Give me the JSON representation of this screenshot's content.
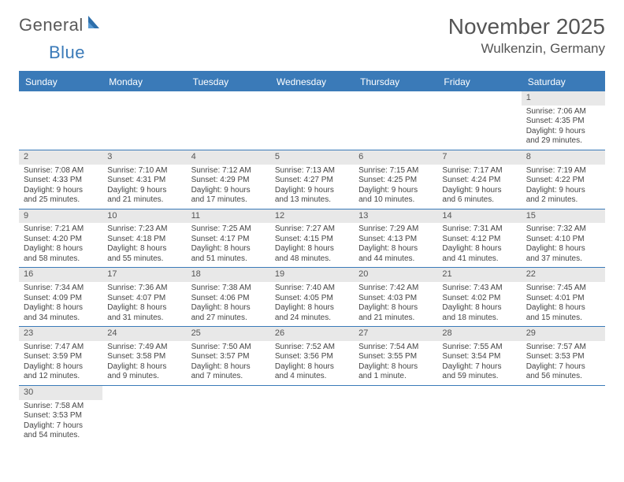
{
  "logo": {
    "text1": "General",
    "text2": "Blue"
  },
  "title": "November 2025",
  "location": "Wulkenzin, Germany",
  "colors": {
    "accent": "#3a7ab8",
    "dayhead_text": "#ffffff",
    "daynum_bg": "#e8e8e8",
    "body_text": "#444444"
  },
  "dayheads": [
    "Sunday",
    "Monday",
    "Tuesday",
    "Wednesday",
    "Thursday",
    "Friday",
    "Saturday"
  ],
  "weeks": [
    [
      null,
      null,
      null,
      null,
      null,
      null,
      {
        "n": "1",
        "sr": "Sunrise: 7:06 AM",
        "ss": "Sunset: 4:35 PM",
        "d1": "Daylight: 9 hours",
        "d2": "and 29 minutes."
      }
    ],
    [
      {
        "n": "2",
        "sr": "Sunrise: 7:08 AM",
        "ss": "Sunset: 4:33 PM",
        "d1": "Daylight: 9 hours",
        "d2": "and 25 minutes."
      },
      {
        "n": "3",
        "sr": "Sunrise: 7:10 AM",
        "ss": "Sunset: 4:31 PM",
        "d1": "Daylight: 9 hours",
        "d2": "and 21 minutes."
      },
      {
        "n": "4",
        "sr": "Sunrise: 7:12 AM",
        "ss": "Sunset: 4:29 PM",
        "d1": "Daylight: 9 hours",
        "d2": "and 17 minutes."
      },
      {
        "n": "5",
        "sr": "Sunrise: 7:13 AM",
        "ss": "Sunset: 4:27 PM",
        "d1": "Daylight: 9 hours",
        "d2": "and 13 minutes."
      },
      {
        "n": "6",
        "sr": "Sunrise: 7:15 AM",
        "ss": "Sunset: 4:25 PM",
        "d1": "Daylight: 9 hours",
        "d2": "and 10 minutes."
      },
      {
        "n": "7",
        "sr": "Sunrise: 7:17 AM",
        "ss": "Sunset: 4:24 PM",
        "d1": "Daylight: 9 hours",
        "d2": "and 6 minutes."
      },
      {
        "n": "8",
        "sr": "Sunrise: 7:19 AM",
        "ss": "Sunset: 4:22 PM",
        "d1": "Daylight: 9 hours",
        "d2": "and 2 minutes."
      }
    ],
    [
      {
        "n": "9",
        "sr": "Sunrise: 7:21 AM",
        "ss": "Sunset: 4:20 PM",
        "d1": "Daylight: 8 hours",
        "d2": "and 58 minutes."
      },
      {
        "n": "10",
        "sr": "Sunrise: 7:23 AM",
        "ss": "Sunset: 4:18 PM",
        "d1": "Daylight: 8 hours",
        "d2": "and 55 minutes."
      },
      {
        "n": "11",
        "sr": "Sunrise: 7:25 AM",
        "ss": "Sunset: 4:17 PM",
        "d1": "Daylight: 8 hours",
        "d2": "and 51 minutes."
      },
      {
        "n": "12",
        "sr": "Sunrise: 7:27 AM",
        "ss": "Sunset: 4:15 PM",
        "d1": "Daylight: 8 hours",
        "d2": "and 48 minutes."
      },
      {
        "n": "13",
        "sr": "Sunrise: 7:29 AM",
        "ss": "Sunset: 4:13 PM",
        "d1": "Daylight: 8 hours",
        "d2": "and 44 minutes."
      },
      {
        "n": "14",
        "sr": "Sunrise: 7:31 AM",
        "ss": "Sunset: 4:12 PM",
        "d1": "Daylight: 8 hours",
        "d2": "and 41 minutes."
      },
      {
        "n": "15",
        "sr": "Sunrise: 7:32 AM",
        "ss": "Sunset: 4:10 PM",
        "d1": "Daylight: 8 hours",
        "d2": "and 37 minutes."
      }
    ],
    [
      {
        "n": "16",
        "sr": "Sunrise: 7:34 AM",
        "ss": "Sunset: 4:09 PM",
        "d1": "Daylight: 8 hours",
        "d2": "and 34 minutes."
      },
      {
        "n": "17",
        "sr": "Sunrise: 7:36 AM",
        "ss": "Sunset: 4:07 PM",
        "d1": "Daylight: 8 hours",
        "d2": "and 31 minutes."
      },
      {
        "n": "18",
        "sr": "Sunrise: 7:38 AM",
        "ss": "Sunset: 4:06 PM",
        "d1": "Daylight: 8 hours",
        "d2": "and 27 minutes."
      },
      {
        "n": "19",
        "sr": "Sunrise: 7:40 AM",
        "ss": "Sunset: 4:05 PM",
        "d1": "Daylight: 8 hours",
        "d2": "and 24 minutes."
      },
      {
        "n": "20",
        "sr": "Sunrise: 7:42 AM",
        "ss": "Sunset: 4:03 PM",
        "d1": "Daylight: 8 hours",
        "d2": "and 21 minutes."
      },
      {
        "n": "21",
        "sr": "Sunrise: 7:43 AM",
        "ss": "Sunset: 4:02 PM",
        "d1": "Daylight: 8 hours",
        "d2": "and 18 minutes."
      },
      {
        "n": "22",
        "sr": "Sunrise: 7:45 AM",
        "ss": "Sunset: 4:01 PM",
        "d1": "Daylight: 8 hours",
        "d2": "and 15 minutes."
      }
    ],
    [
      {
        "n": "23",
        "sr": "Sunrise: 7:47 AM",
        "ss": "Sunset: 3:59 PM",
        "d1": "Daylight: 8 hours",
        "d2": "and 12 minutes."
      },
      {
        "n": "24",
        "sr": "Sunrise: 7:49 AM",
        "ss": "Sunset: 3:58 PM",
        "d1": "Daylight: 8 hours",
        "d2": "and 9 minutes."
      },
      {
        "n": "25",
        "sr": "Sunrise: 7:50 AM",
        "ss": "Sunset: 3:57 PM",
        "d1": "Daylight: 8 hours",
        "d2": "and 7 minutes."
      },
      {
        "n": "26",
        "sr": "Sunrise: 7:52 AM",
        "ss": "Sunset: 3:56 PM",
        "d1": "Daylight: 8 hours",
        "d2": "and 4 minutes."
      },
      {
        "n": "27",
        "sr": "Sunrise: 7:54 AM",
        "ss": "Sunset: 3:55 PM",
        "d1": "Daylight: 8 hours",
        "d2": "and 1 minute."
      },
      {
        "n": "28",
        "sr": "Sunrise: 7:55 AM",
        "ss": "Sunset: 3:54 PM",
        "d1": "Daylight: 7 hours",
        "d2": "and 59 minutes."
      },
      {
        "n": "29",
        "sr": "Sunrise: 7:57 AM",
        "ss": "Sunset: 3:53 PM",
        "d1": "Daylight: 7 hours",
        "d2": "and 56 minutes."
      }
    ],
    [
      {
        "n": "30",
        "sr": "Sunrise: 7:58 AM",
        "ss": "Sunset: 3:53 PM",
        "d1": "Daylight: 7 hours",
        "d2": "and 54 minutes."
      },
      null,
      null,
      null,
      null,
      null,
      null
    ]
  ]
}
